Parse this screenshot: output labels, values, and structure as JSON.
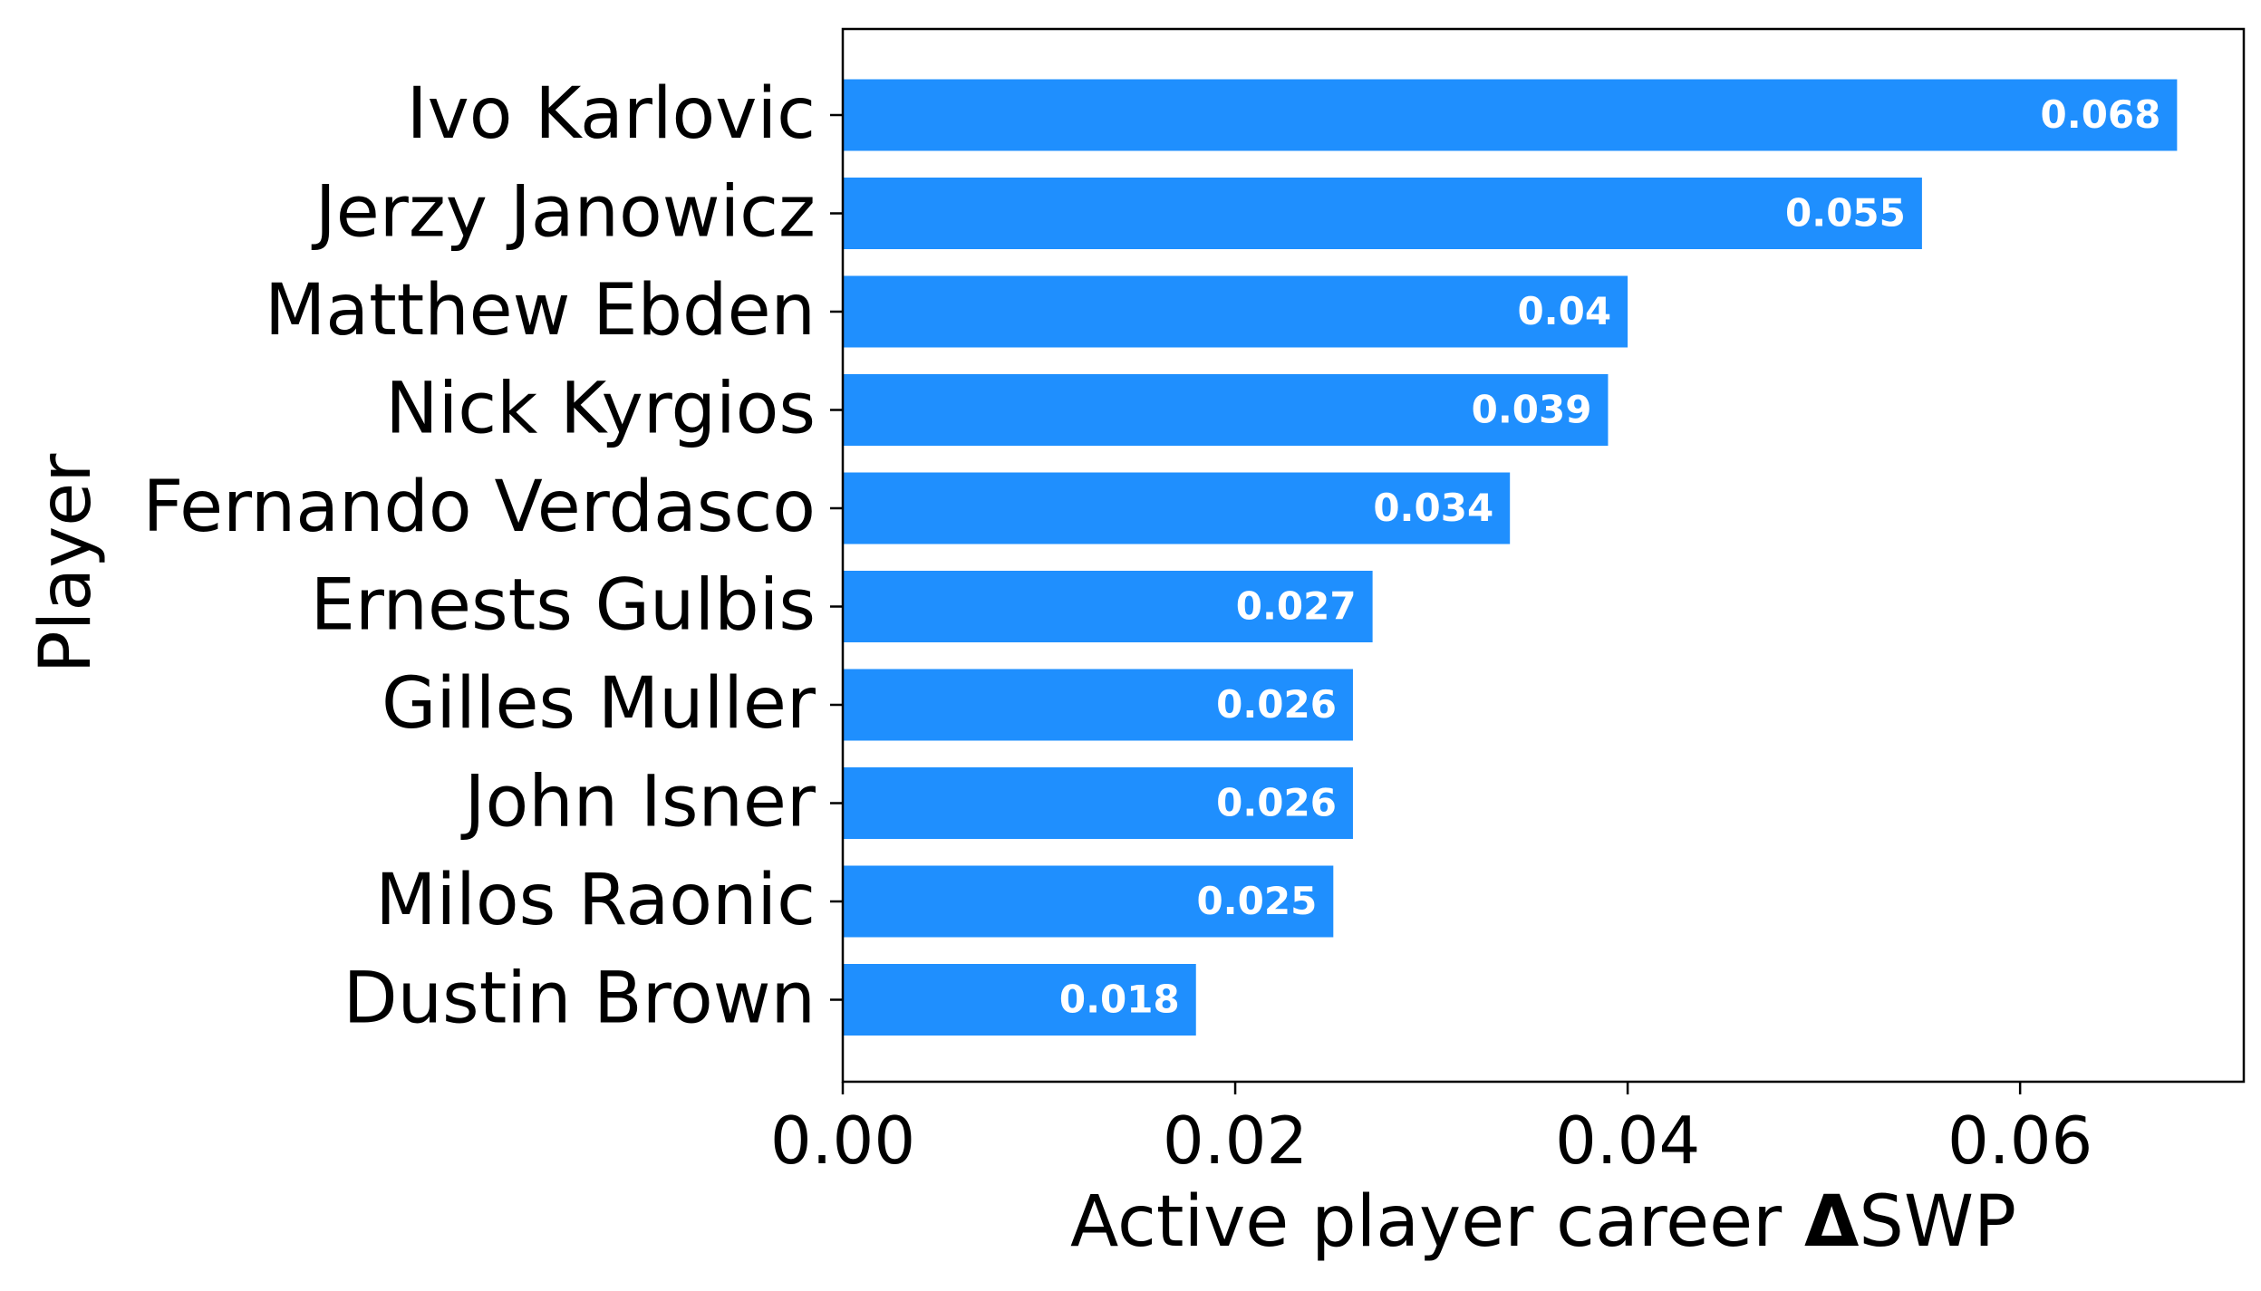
{
  "colors": {
    "bar": "#1f8ffe",
    "axis": "#000000",
    "value_text": "#ffffff"
  },
  "chart_data": {
    "type": "bar",
    "orientation": "horizontal",
    "categories": [
      "Ivo Karlovic",
      "Jerzy Janowicz",
      "Matthew Ebden",
      "Nick Kyrgios",
      "Fernando Verdasco",
      "Ernests Gulbis",
      "Gilles Muller",
      "John Isner",
      "Milos Raonic",
      "Dustin Brown"
    ],
    "values": [
      0.068,
      0.055,
      0.04,
      0.039,
      0.034,
      0.027,
      0.026,
      0.026,
      0.025,
      0.018
    ],
    "value_labels": [
      "0.068",
      "0.055",
      "0.04",
      "0.039",
      "0.034",
      "0.027",
      "0.026",
      "0.026",
      "0.025",
      "0.018"
    ],
    "xlabel_prefix": "Active player career ",
    "xlabel_symbol": "Δ",
    "xlabel_suffix": "SWP",
    "ylabel": "Player",
    "xlim": [
      0,
      0.0714
    ],
    "xticks": [
      0,
      0.02,
      0.04,
      0.06
    ],
    "xtick_labels": [
      "0.00",
      "0.02",
      "0.04",
      "0.06"
    ],
    "grid": false
  }
}
